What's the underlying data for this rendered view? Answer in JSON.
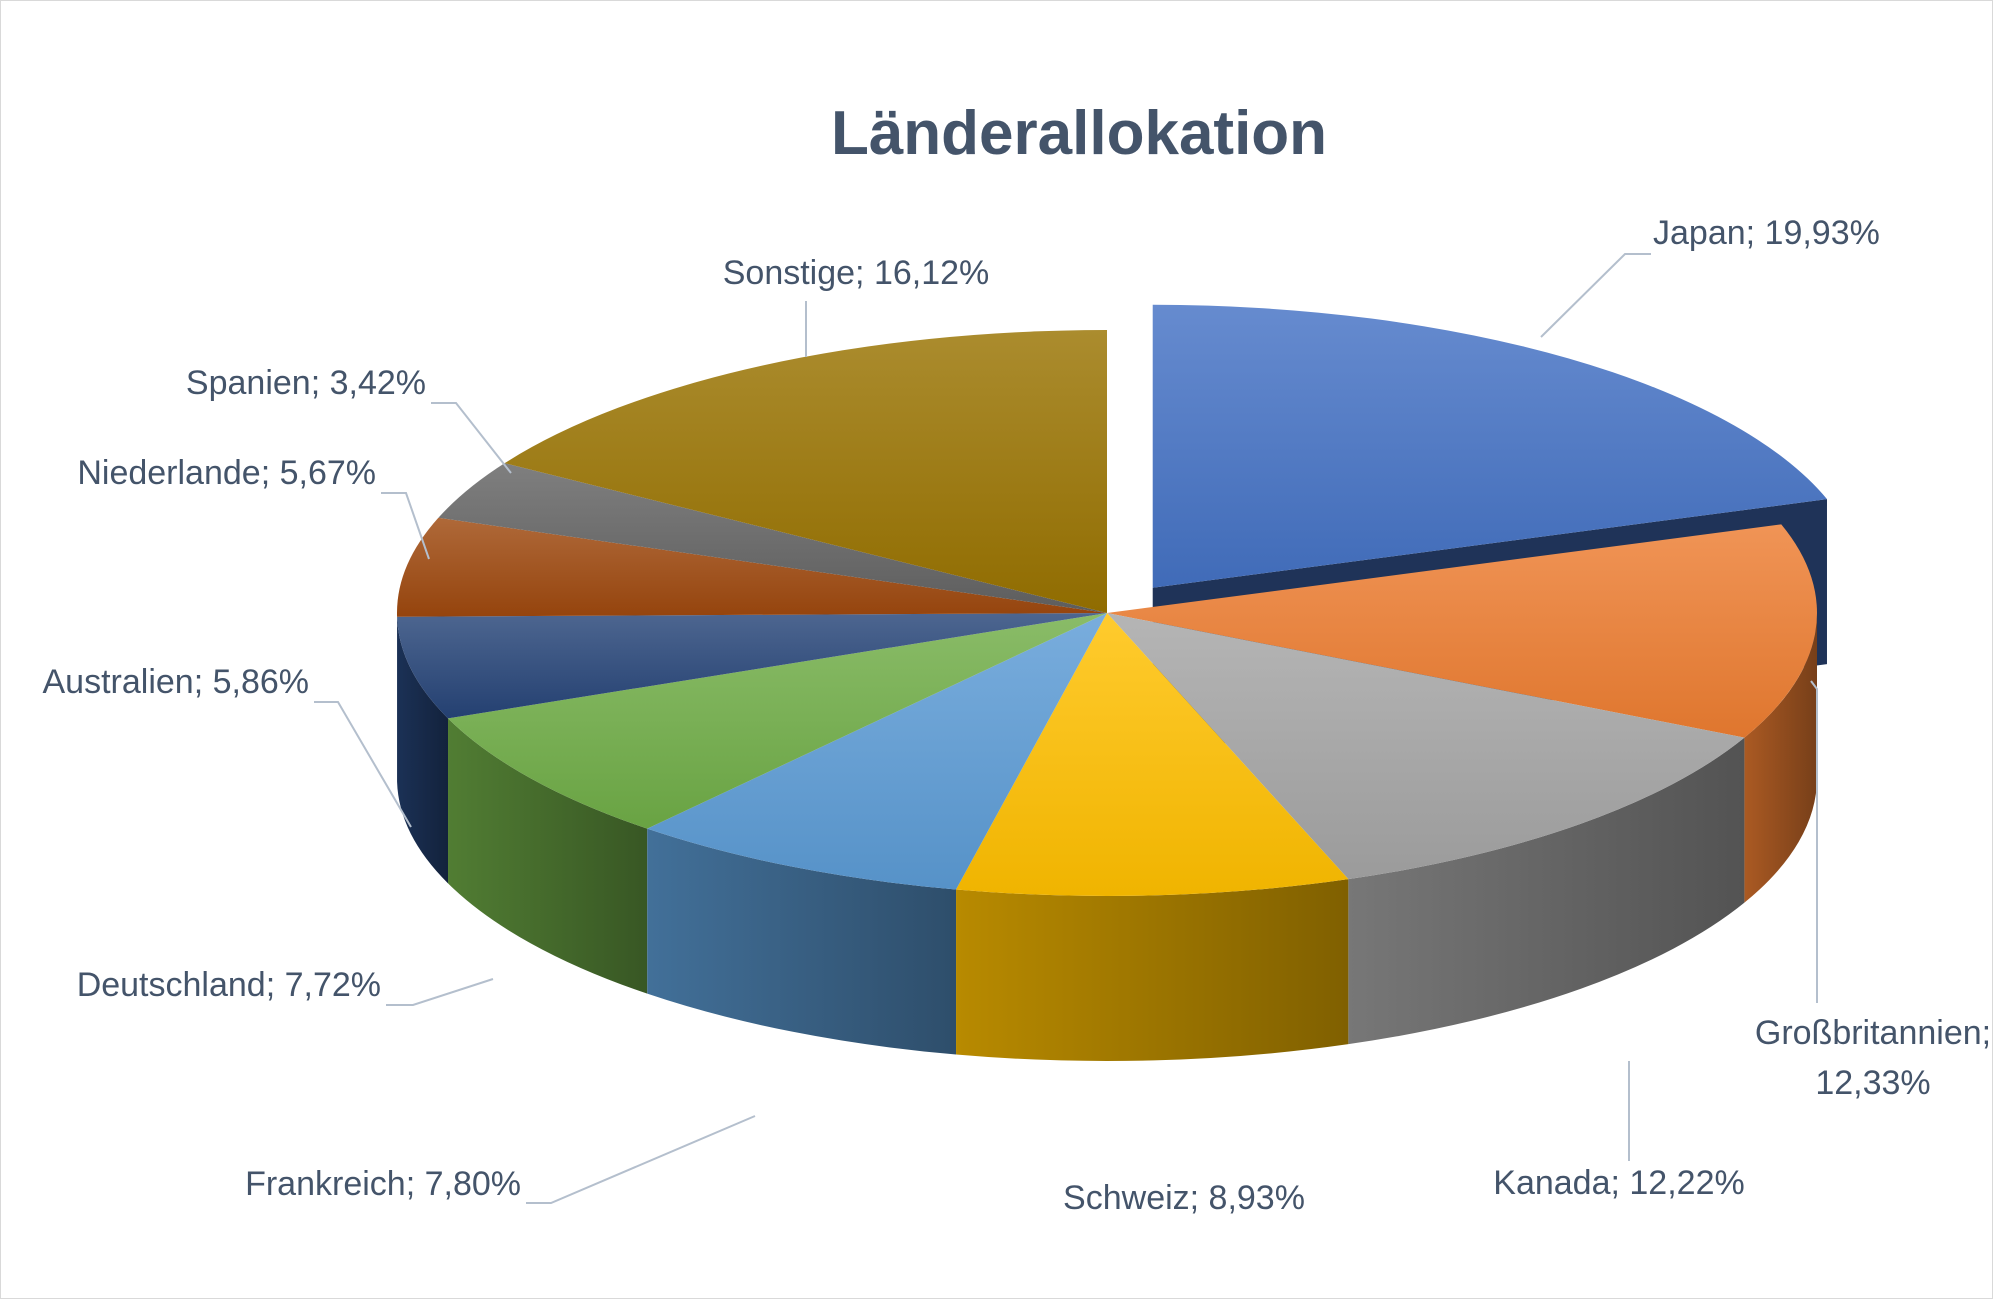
{
  "chart_data": {
    "type": "pie",
    "variant": "3d-exploded",
    "title": "Länderallokation",
    "label_format": "category; percent",
    "exploded_slice": "Japan",
    "slices": [
      {
        "name": "Japan",
        "value": 19.93,
        "label": "Japan; 19,93%",
        "color": "#4472c4"
      },
      {
        "name": "Großbritannien",
        "value": 12.33,
        "label_lines": [
          "Großbritannien;",
          "12,33%"
        ],
        "color": "#ed7d31"
      },
      {
        "name": "Kanada",
        "value": 12.22,
        "label": "Kanada; 12,22%",
        "color": "#a5a5a5"
      },
      {
        "name": "Schweiz",
        "value": 8.93,
        "label": "Schweiz; 8,93%",
        "color": "#ffc000"
      },
      {
        "name": "Frankreich",
        "value": 7.8,
        "label": "Frankreich; 7,80%",
        "color": "#5b9bd5"
      },
      {
        "name": "Deutschland",
        "value": 7.72,
        "label": "Deutschland; 7,72%",
        "color": "#70ad47"
      },
      {
        "name": "Australien",
        "value": 5.86,
        "label": "Australien; 5,86%",
        "color": "#264478"
      },
      {
        "name": "Niederlande",
        "value": 5.67,
        "label": "Niederlande; 5,67%",
        "color": "#9e480e"
      },
      {
        "name": "Spanien",
        "value": 3.42,
        "label": "Spanien; 3,42%",
        "color": "#636363"
      },
      {
        "name": "Sonstige",
        "value": 16.12,
        "label": "Sonstige; 16,12%",
        "color": "#997300"
      }
    ]
  }
}
